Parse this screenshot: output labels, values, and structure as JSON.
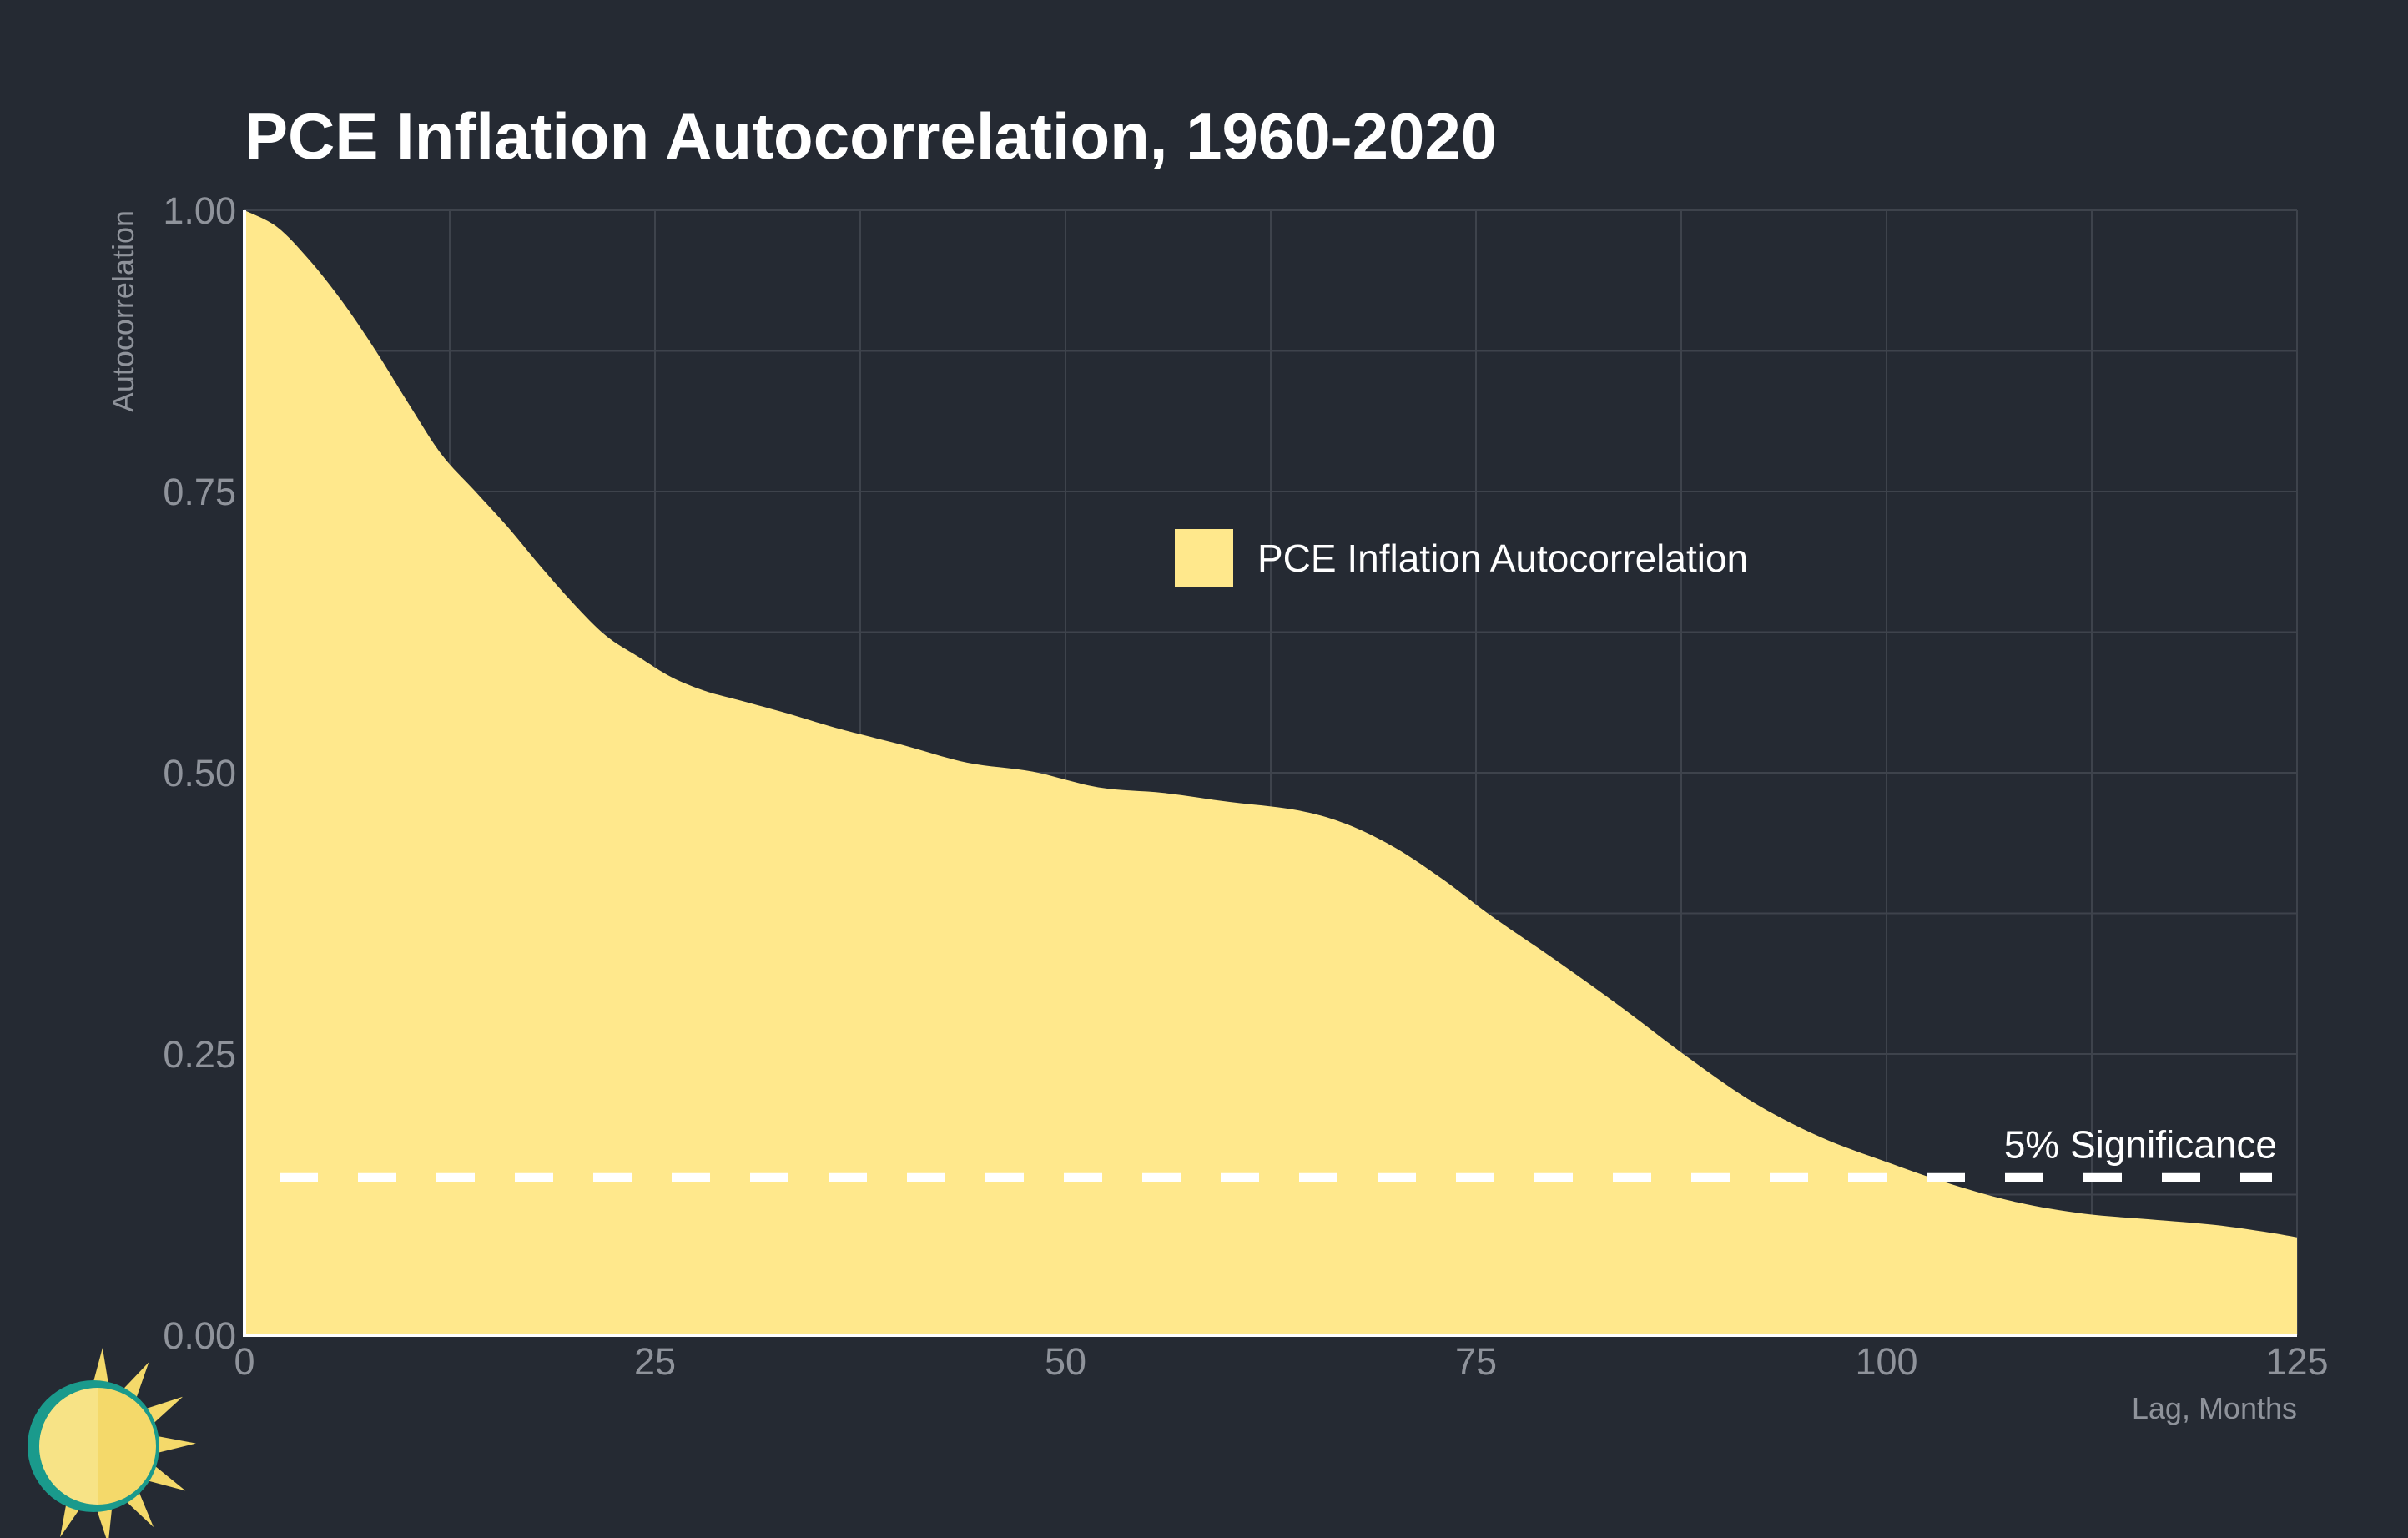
{
  "chart_data": {
    "type": "area",
    "title": "PCE Inflation Autocorrelation, 1960-2020",
    "xlabel": "Lag, Months",
    "ylabel": "Autocorrelation",
    "xlim": [
      0,
      125
    ],
    "ylim": [
      0,
      1
    ],
    "x_ticks": [
      0,
      25,
      50,
      75,
      100,
      125
    ],
    "x_tick_labels": [
      "0",
      "25",
      "50",
      "75",
      "100",
      "125"
    ],
    "y_ticks": [
      0,
      0.25,
      0.5,
      0.75,
      1.0
    ],
    "y_tick_labels": [
      "0.00",
      "0.25",
      "0.50",
      "0.75",
      "1.00"
    ],
    "grid": true,
    "legend_position": "center",
    "series": [
      {
        "name": "PCE Inflation Autocorrelation",
        "color": "#ffe88c",
        "x": [
          0,
          2,
          4,
          6,
          8,
          10,
          12,
          14,
          16,
          18,
          20,
          22,
          24,
          26,
          28,
          30,
          33,
          36,
          40,
          44,
          48,
          52,
          56,
          60,
          64,
          67,
          70,
          73,
          76,
          80,
          84,
          88,
          92,
          96,
          100,
          104,
          108,
          112,
          116,
          120,
          123,
          125
        ],
        "values": [
          1.0,
          0.985,
          0.955,
          0.918,
          0.875,
          0.828,
          0.783,
          0.751,
          0.719,
          0.684,
          0.651,
          0.622,
          0.603,
          0.585,
          0.573,
          0.565,
          0.553,
          0.54,
          0.525,
          0.509,
          0.501,
          0.487,
          0.482,
          0.474,
          0.467,
          0.455,
          0.434,
          0.405,
          0.372,
          0.332,
          0.29,
          0.246,
          0.206,
          0.176,
          0.154,
          0.134,
          0.118,
          0.108,
          0.103,
          0.098,
          0.092,
          0.087
        ]
      }
    ],
    "annotations": [
      {
        "label": "5% Significance",
        "y": 0.14,
        "style": "dashed",
        "color": "#ffffff"
      }
    ]
  },
  "logo": {
    "name": "sun-logo-icon",
    "colors": [
      "#f4d96a",
      "#1a9a8c",
      "#faeb9c"
    ]
  }
}
